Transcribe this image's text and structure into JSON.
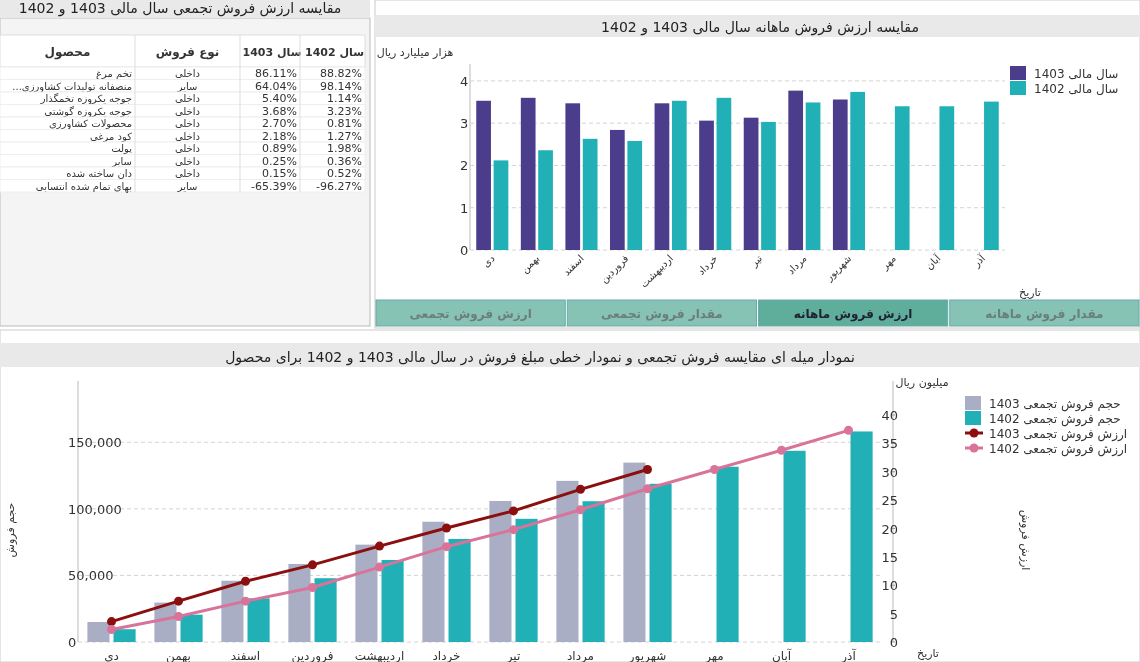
{
  "chart_data": [
    {
      "type": "other",
      "title": "مقایسه ارزش فروش تجمعی سال مالی 1403 و 1402",
      "categories": [
        "تخم مرغ",
        "منصفانه تولیدات کشاورزی...",
        "جوجه یکروزه تخمگذار",
        "جوجه یکروزه گوشتی",
        "محصولات کشاورزی",
        "کود مرغی",
        "پولت",
        "سایر",
        "دان ساخته شده",
        "بهای تمام شده انتسابی"
      ],
      "annotations": [
        "محصول",
        "نوع فروش",
        "داخلی",
        "سایر",
        "داخلی",
        "داخلی",
        "داخلی",
        "داخلی",
        "داخلی",
        "داخلی",
        "داخلی",
        "سایر"
      ],
      "series": [
        {
          "name": "سال 1403",
          "values": [
            86.11,
            64.04,
            5.4,
            3.68,
            2.7,
            2.18,
            0.89,
            0.25,
            0.15,
            -65.39
          ],
          "value_labels": [
            "86.11%",
            "64.04%",
            "5.40%",
            "3.68%",
            "2.70%",
            "2.18%",
            "0.89%",
            "0.25%",
            "0.15%",
            "-65.39%"
          ]
        },
        {
          "name": "سال 1402",
          "values": [
            88.82,
            98.14,
            1.14,
            3.23,
            0.81,
            1.27,
            1.98,
            0.36,
            0.52,
            -96.27
          ],
          "value_labels": [
            "88.82%",
            "98.14%",
            "1.14%",
            "3.23%",
            "0.81%",
            "1.27%",
            "1.98%",
            "0.36%",
            "0.52%",
            "-96.27%"
          ]
        }
      ]
    },
    {
      "type": "bar",
      "title": "مقایسه ارزش فروش ماهانه سال مالی 1403 و 1402",
      "categories": [
        "دی",
        "بهمن",
        "اسفند",
        "فروردین",
        "اردیبهشت",
        "خرداد",
        "تیر",
        "مرداد",
        "شهریور",
        "مهر",
        "آبان",
        "آذر"
      ],
      "series": [
        {
          "name": "سال مالی 1403",
          "color": "#4b3c8c",
          "values": [
            3.53,
            3.6,
            3.47,
            2.84,
            3.47,
            3.06,
            3.13,
            3.77,
            3.56,
            null,
            null,
            null
          ]
        },
        {
          "name": "سال مالی 1402",
          "color": "#21b0b5",
          "values": [
            2.12,
            2.36,
            2.63,
            2.58,
            3.53,
            3.6,
            3.03,
            3.49,
            3.74,
            3.4,
            3.4,
            3.51
          ]
        }
      ],
      "ylim": [
        0,
        4.4
      ],
      "yticks": [
        0,
        1,
        2,
        3,
        4
      ],
      "ylabel": "هزار میلیارد ریال",
      "xlabel": "تاریخ",
      "grid": "y",
      "legend": "top right",
      "annotations": [
        "ارزش فروش تجمعی",
        "مقدار فروش تجمعی",
        "ارزش فروش ماهانه",
        "مقدار فروش ماهانه"
      ]
    },
    {
      "type": "bar",
      "title": "نمودار میله ای مقایسه فروش تجمعی و نمودار خطی مبلغ فروش در سال مالی 1403 و 1402 برای محصول",
      "categories": [
        "دی",
        "بهمن",
        "اسفند",
        "فروردین",
        "اردیبهشت",
        "خرداد",
        "تیر",
        "مرداد",
        "شهریور",
        "مهر",
        "آبان",
        "آذر"
      ],
      "series": [
        {
          "name": "حجم فروش تجمعی 1403",
          "color": "#a9aec4",
          "values": [
            15000,
            29600,
            46000,
            58600,
            73100,
            90300,
            105900,
            121000,
            134700,
            null,
            null,
            null
          ]
        },
        {
          "name": "حجم فروش تجمعی 1402",
          "color": "#21b0b5",
          "values": [
            9600,
            20500,
            32800,
            47900,
            61600,
            77400,
            92500,
            105700,
            118800,
            131600,
            143600,
            158100
          ]
        },
        {
          "name": "ارزش فروش تجمعی 1403",
          "type": "line",
          "axis": "y2",
          "color": "#8b0f0f",
          "values": [
            3.6,
            7.2,
            10.7,
            13.6,
            16.9,
            20.1,
            23.1,
            26.9,
            30.4,
            null,
            null,
            null
          ]
        },
        {
          "name": "ارزش فروش تجمعی 1402",
          "type": "line",
          "axis": "y2",
          "color": "#d9739a",
          "values": [
            2.2,
            4.5,
            7.2,
            9.6,
            13.2,
            16.8,
            19.8,
            23.3,
            27.0,
            30.4,
            33.8,
            37.3
          ]
        }
      ],
      "ylim": [
        0,
        196000
      ],
      "yticks": [
        0,
        {
          "value": 50000,
          "label": "50,000"
        },
        {
          "value": 100000,
          "label": "100,000"
        },
        {
          "value": 150000,
          "label": "150,000"
        }
      ],
      "y2lim": [
        0,
        46
      ],
      "y2ticks": [
        0,
        5,
        10,
        15,
        20,
        25,
        30,
        35,
        40
      ],
      "ylabel": "حجم فروش",
      "y2label": "ارزش فروش",
      "xlabel": "تاریخ",
      "grid": "y",
      "legend": "top right",
      "marker": "circle",
      "annotations": [
        "میلیون ریال"
      ]
    }
  ]
}
